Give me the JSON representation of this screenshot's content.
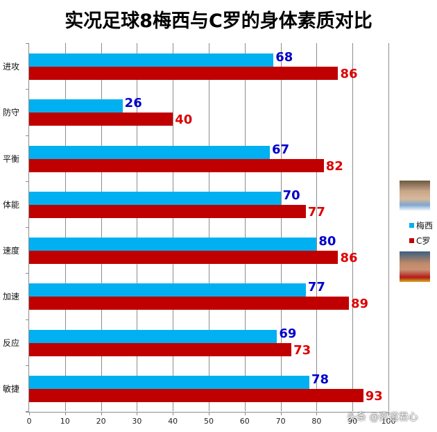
{
  "title": "实况足球8梅西与C罗的身体素质对比",
  "colors": {
    "messi": "#00b0f0",
    "ronaldo": "#c00000",
    "messi_label": "#0000cc",
    "ronaldo_label": "#dd0000"
  },
  "legend": {
    "items": [
      {
        "label": "梅西",
        "color": "#00b0f0"
      },
      {
        "label": "C罗",
        "color": "#c00000"
      }
    ]
  },
  "watermark": "头条 @弈道君心",
  "chart_data": {
    "type": "bar",
    "orientation": "horizontal",
    "title": "实况足球8梅西与C罗的身体素质对比",
    "categories": [
      "进攻",
      "防守",
      "平衡",
      "体能",
      "速度",
      "加速",
      "反应",
      "敏捷"
    ],
    "series": [
      {
        "name": "梅西",
        "color": "#00b0f0",
        "values": [
          68,
          26,
          67,
          70,
          80,
          77,
          69,
          78
        ]
      },
      {
        "name": "C罗",
        "color": "#c00000",
        "values": [
          86,
          40,
          82,
          77,
          86,
          89,
          73,
          93
        ]
      }
    ],
    "xlabel": "",
    "ylabel": "",
    "xlim": [
      0,
      100
    ],
    "xticks": [
      "0",
      "10",
      "20",
      "30",
      "40",
      "50",
      "60",
      "70",
      "80",
      "90",
      "100"
    ],
    "grid": true,
    "legend_position": "right",
    "data_labels": true
  }
}
